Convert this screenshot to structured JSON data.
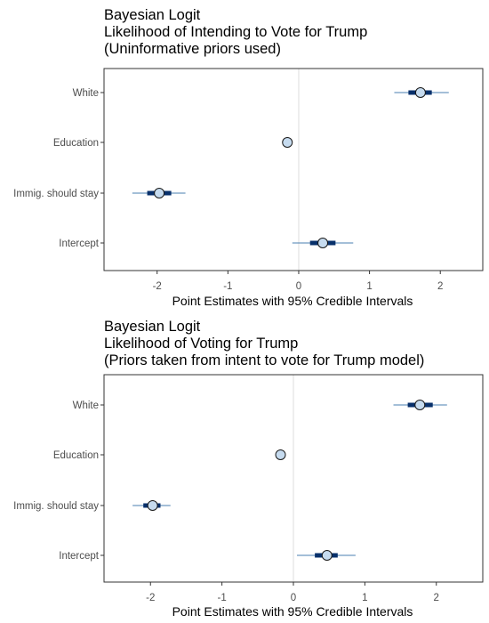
{
  "chart_data": [
    {
      "type": "dot-interval",
      "title_lines": [
        "Bayesian Logit",
        "Likelihood of Intending to Vote for Trump",
        "(Uninformative priors used)"
      ],
      "xlabel": "Point Estimates with 95% Credible Intervals",
      "xlim": [
        -2.75,
        2.6
      ],
      "xticks": [
        -2,
        -1,
        0,
        1,
        2
      ],
      "reference_line": 0,
      "grid": false,
      "categories": [
        "White",
        "Education",
        "Immig. should stay",
        "Intercept"
      ],
      "estimates": [
        {
          "name": "White",
          "estimate": 1.72,
          "inner": [
            1.55,
            1.88
          ],
          "outer": [
            1.35,
            2.12
          ]
        },
        {
          "name": "Education",
          "estimate": -0.16,
          "inner": [
            -0.19,
            -0.13
          ],
          "outer": [
            -0.21,
            -0.11
          ]
        },
        {
          "name": "Immig. should stay",
          "estimate": -1.97,
          "inner": [
            -2.14,
            -1.8
          ],
          "outer": [
            -2.35,
            -1.6
          ]
        },
        {
          "name": "Intercept",
          "estimate": 0.34,
          "inner": [
            0.16,
            0.52
          ],
          "outer": [
            -0.09,
            0.77
          ]
        }
      ]
    },
    {
      "type": "dot-interval",
      "title_lines": [
        "Bayesian Logit",
        "Likelihood of Voting for Trump",
        "(Priors taken from intent to vote for Trump model)"
      ],
      "xlabel": "Point Estimates with 95% Credible Intervals",
      "xlim": [
        -2.65,
        2.65
      ],
      "xticks": [
        -2,
        -1,
        0,
        1,
        2
      ],
      "reference_line": 0,
      "grid": false,
      "categories": [
        "White",
        "Education",
        "Immig. should stay",
        "Intercept"
      ],
      "estimates": [
        {
          "name": "White",
          "estimate": 1.77,
          "inner": [
            1.6,
            1.95
          ],
          "outer": [
            1.4,
            2.15
          ]
        },
        {
          "name": "Education",
          "estimate": -0.18,
          "inner": [
            -0.21,
            -0.15
          ],
          "outer": [
            -0.23,
            -0.13
          ]
        },
        {
          "name": "Immig. should stay",
          "estimate": -1.97,
          "inner": [
            -2.1,
            -1.86
          ],
          "outer": [
            -2.25,
            -1.72
          ]
        },
        {
          "name": "Intercept",
          "estimate": 0.47,
          "inner": [
            0.3,
            0.62
          ],
          "outer": [
            0.05,
            0.87
          ]
        }
      ]
    }
  ],
  "colors": {
    "point_fill": "#c6dbef",
    "point_stroke": "#1a1a1a",
    "interval": "#08306b",
    "outer_interval": "#4a7fb0",
    "reference_line": "#dddddd",
    "panel_border": "#333333"
  }
}
